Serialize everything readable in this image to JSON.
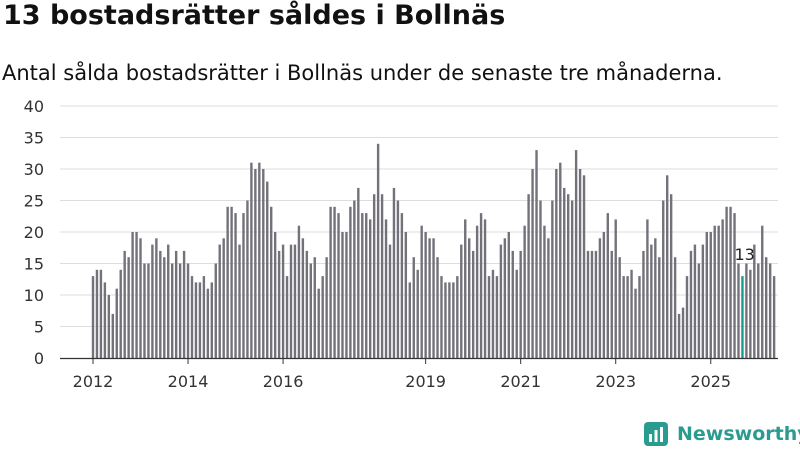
{
  "header": {
    "title": "13 bostadsrätter såldes i Bollnäs",
    "subtitle": "Antal sålda bostadsrätter i Bollnäs under de senaste tre månaderna."
  },
  "brand": {
    "name": "Newsworthy",
    "color": "#2a9c8f"
  },
  "colors": {
    "bar": "#73727a",
    "highlight": "#1a9a8c",
    "grid": "#dddddd",
    "axis": "#333333",
    "text": "#333333"
  },
  "chart_data": {
    "type": "bar",
    "title": "13 bostadsrätter såldes i Bollnäs",
    "subtitle": "Antal sålda bostadsrätter i Bollnäs under de senaste tre månaderna.",
    "x_start": "2012-01",
    "x_step": "month",
    "ylim": [
      0,
      40
    ],
    "yticks": [
      0,
      5,
      10,
      15,
      20,
      25,
      30,
      35,
      40
    ],
    "xticks": [
      "2012",
      "2014",
      "2016",
      "2019",
      "2021",
      "2023",
      "2025"
    ],
    "xtick_index": [
      0,
      24,
      48,
      84,
      108,
      132,
      156
    ],
    "grid": true,
    "values": [
      13,
      14,
      14,
      12,
      10,
      7,
      11,
      14,
      17,
      16,
      20,
      20,
      19,
      15,
      15,
      18,
      19,
      17,
      16,
      18,
      15,
      17,
      15,
      17,
      15,
      13,
      12,
      12,
      13,
      11,
      12,
      15,
      18,
      19,
      24,
      24,
      23,
      18,
      23,
      25,
      31,
      30,
      31,
      30,
      28,
      24,
      20,
      17,
      18,
      13,
      18,
      18,
      21,
      19,
      17,
      15,
      16,
      11,
      13,
      16,
      24,
      24,
      23,
      20,
      20,
      24,
      25,
      27,
      23,
      23,
      22,
      26,
      34,
      26,
      22,
      18,
      27,
      25,
      23,
      20,
      12,
      16,
      14,
      21,
      20,
      19,
      19,
      16,
      13,
      12,
      12,
      12,
      13,
      18,
      22,
      19,
      17,
      21,
      23,
      22,
      13,
      14,
      13,
      18,
      19,
      20,
      17,
      14,
      17,
      21,
      26,
      30,
      33,
      25,
      21,
      19,
      25,
      30,
      31,
      27,
      26,
      25,
      33,
      30,
      29,
      17,
      17,
      17,
      19,
      20,
      23,
      17,
      22,
      16,
      13,
      13,
      14,
      11,
      13,
      17,
      22,
      18,
      19,
      16,
      25,
      29,
      26,
      16,
      7,
      8,
      13,
      17,
      18,
      15,
      18,
      20,
      20,
      21,
      21,
      22,
      24,
      24,
      23,
      15,
      13,
      15,
      14,
      18,
      15,
      21,
      16,
      15,
      13
    ],
    "highlight_index": 164,
    "annotation": "13"
  }
}
